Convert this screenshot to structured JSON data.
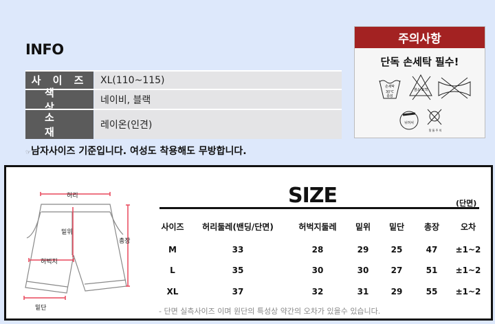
{
  "info": {
    "title": "INFO",
    "rows": [
      {
        "label": "사 이 즈",
        "value": "XL(110~115)"
      },
      {
        "label": "색  상",
        "value": "네이비, 블랙"
      },
      {
        "label": "소  재",
        "value": "레이온(인견)"
      }
    ],
    "note": "남자사이즈 기준입니다. 여성도 착용해도 무방합니다.",
    "note_icon": "pointing-hand-icon"
  },
  "caution": {
    "title": "주의사항",
    "subtitle": "단독 손세탁 필수!",
    "icons": [
      {
        "name": "hand-wash-30c-icon",
        "text": "손세탁 30℃ 중성"
      },
      {
        "name": "no-bleach-icon",
        "text": "염소 표백"
      },
      {
        "name": "no-wring-icon"
      },
      {
        "name": "dry-clean-icon",
        "text": "뉘어서"
      },
      {
        "name": "no-tumble-dry-icon",
        "text": "탈 둘 주 의"
      }
    ]
  },
  "size": {
    "title": "SIZE",
    "unit": "(단면)",
    "headers": [
      "사이즈",
      "허리둘레(밴딩/단면)",
      "허벅지둘레",
      "밑위",
      "밑단",
      "총장",
      "오차"
    ],
    "rows": [
      [
        "M",
        "33",
        "28",
        "29",
        "25",
        "47",
        "±1~2"
      ],
      [
        "L",
        "35",
        "30",
        "30",
        "27",
        "51",
        "±1~2"
      ],
      [
        "XL",
        "37",
        "32",
        "31",
        "29",
        "55",
        "±1~2"
      ]
    ],
    "note": "- 단면 실측사이즈 이며 원단의 특성상 약간의 오차가 있을수 있습니다."
  },
  "diagram": {
    "waist": "허리",
    "rise": "밑위",
    "length": "총장",
    "thigh": "허벅지",
    "hem": "밑단"
  },
  "colors": {
    "background": "#dde8fb",
    "label_bg": "#5b5b5b",
    "caution_red": "#a32222",
    "measure_line": "#e8475a"
  }
}
